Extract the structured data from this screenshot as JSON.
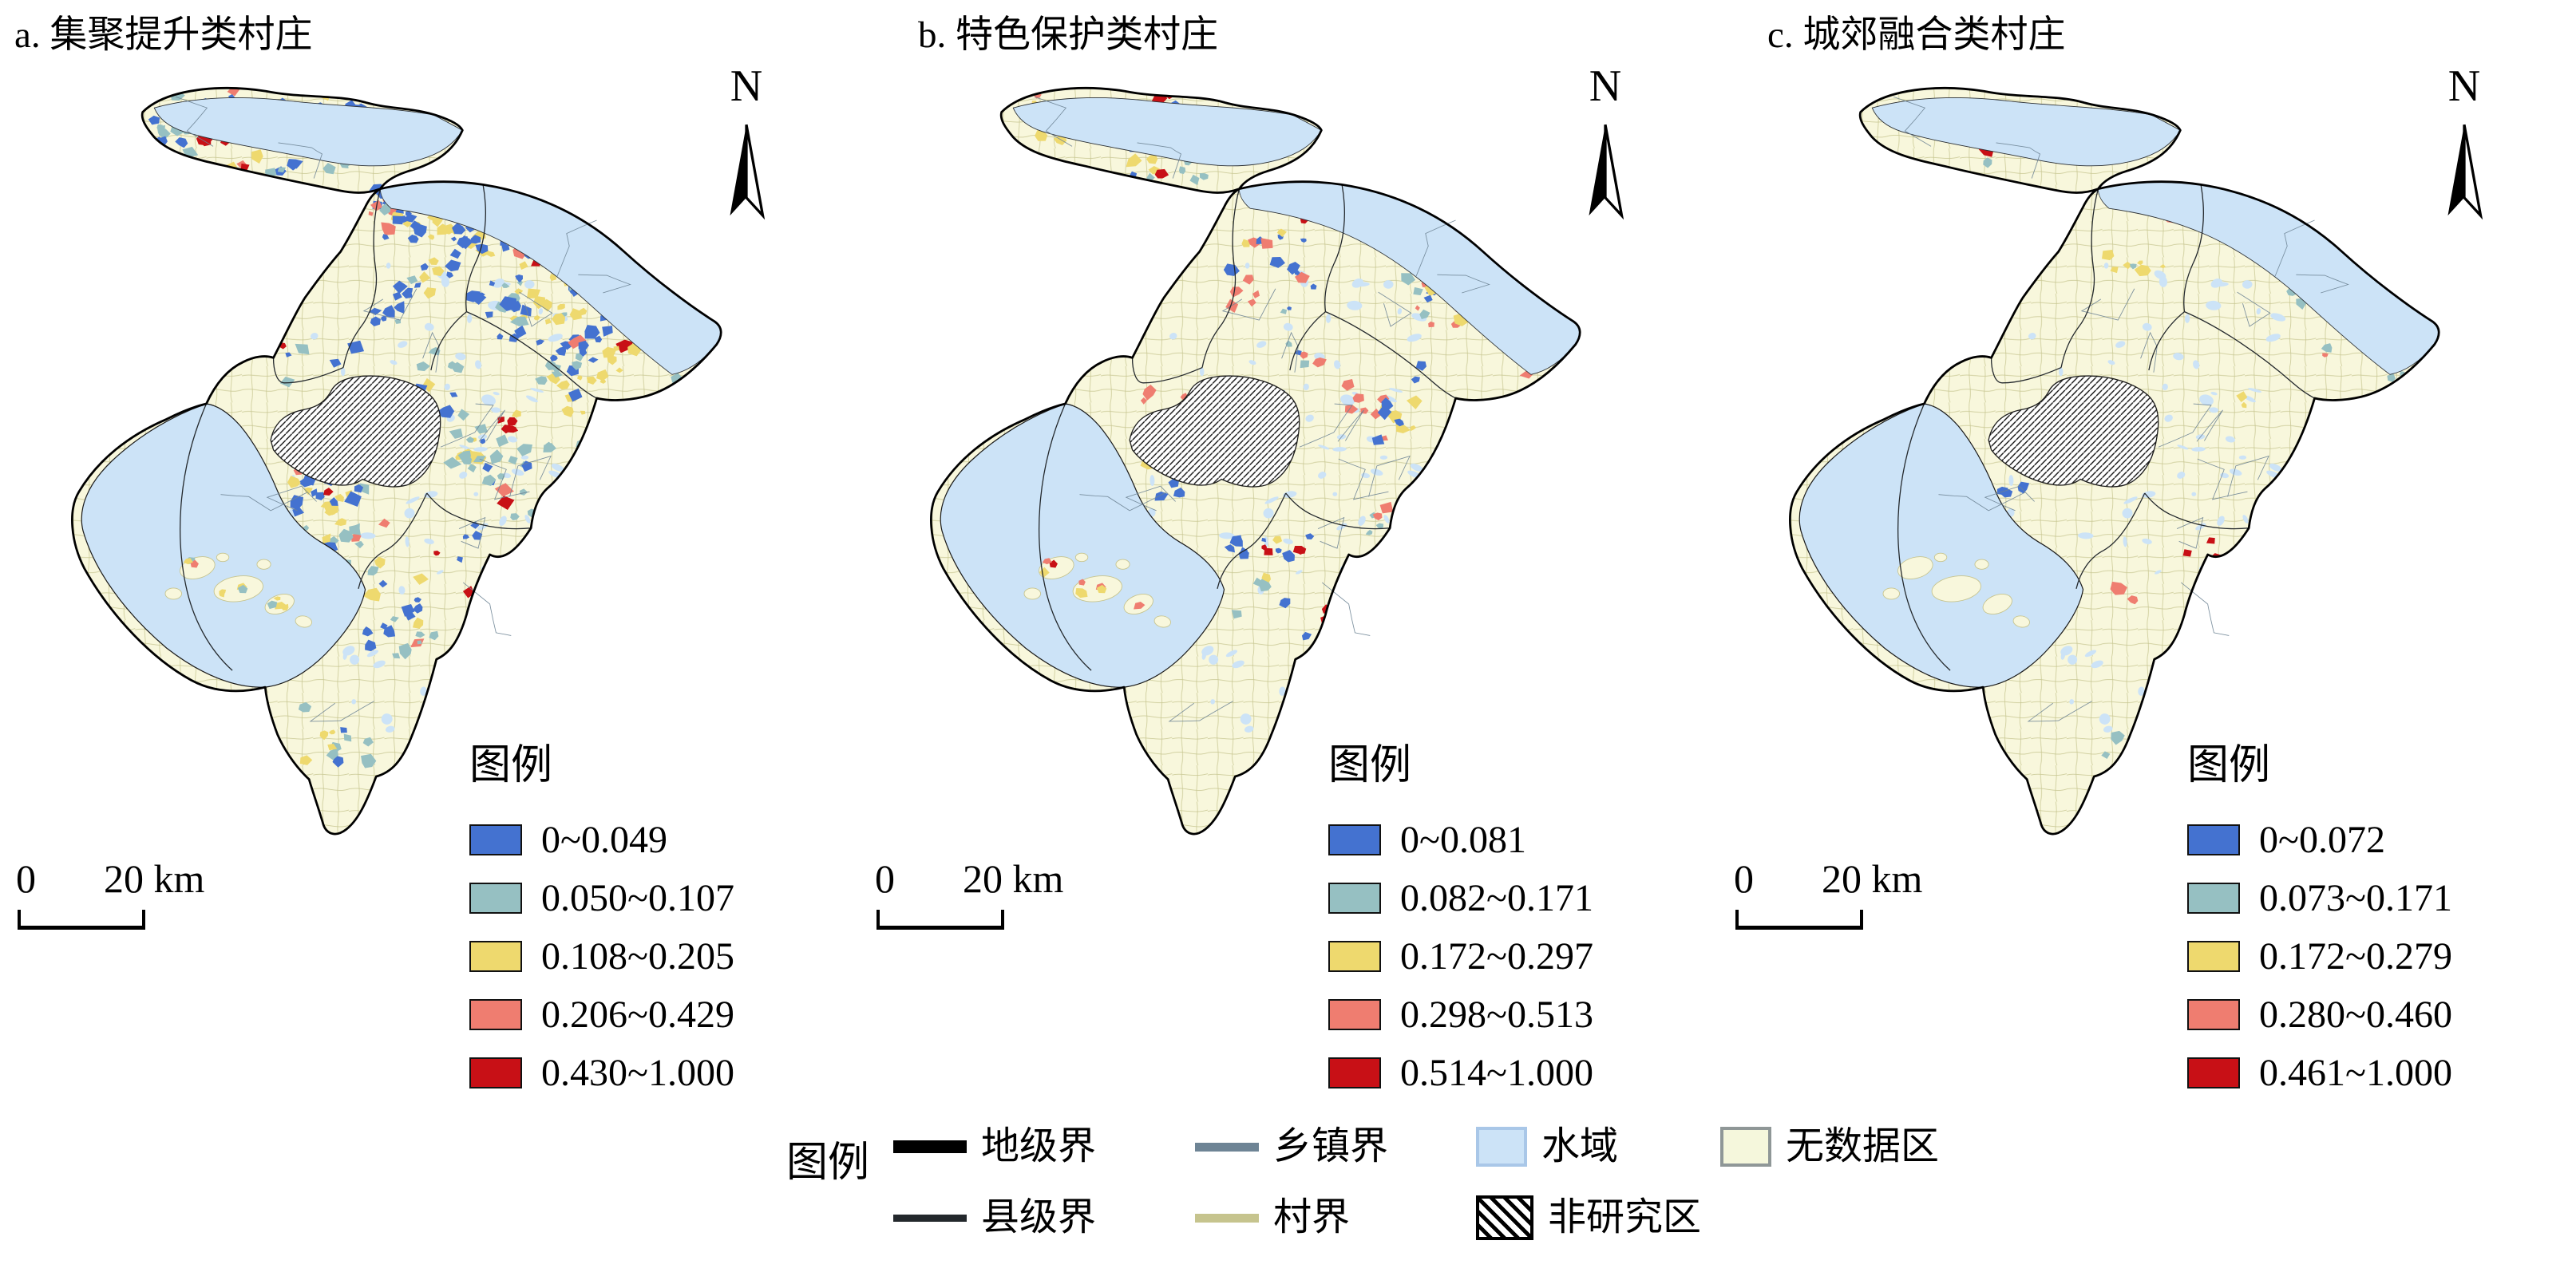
{
  "figure": {
    "panels": [
      {
        "id": "a",
        "title": "a. 集聚提升类村庄",
        "legend_title": "图例",
        "north_label": "N",
        "scale_bar": {
          "start": "0",
          "end": "20 km"
        },
        "classes": [
          {
            "range": "0~0.049",
            "color": "#4472d0"
          },
          {
            "range": "0.050~0.107",
            "color": "#96c0c2"
          },
          {
            "range": "0.108~0.205",
            "color": "#eed96e"
          },
          {
            "range": "0.206~0.429",
            "color": "#ef7d70"
          },
          {
            "range": "0.430~1.000",
            "color": "#c81016"
          }
        ]
      },
      {
        "id": "b",
        "title": "b. 特色保护类村庄",
        "legend_title": "图例",
        "north_label": "N",
        "scale_bar": {
          "start": "0",
          "end": "20 km"
        },
        "classes": [
          {
            "range": "0~0.081",
            "color": "#4472d0"
          },
          {
            "range": "0.082~0.171",
            "color": "#96c0c2"
          },
          {
            "range": "0.172~0.297",
            "color": "#eed96e"
          },
          {
            "range": "0.298~0.513",
            "color": "#ef7d70"
          },
          {
            "range": "0.514~1.000",
            "color": "#c81016"
          }
        ]
      },
      {
        "id": "c",
        "title": "c. 城郊融合类村庄",
        "legend_title": "图例",
        "north_label": "N",
        "scale_bar": {
          "start": "0",
          "end": "20 km"
        },
        "classes": [
          {
            "range": "0~0.072",
            "color": "#4472d0"
          },
          {
            "range": "0.073~0.171",
            "color": "#96c0c2"
          },
          {
            "range": "0.172~0.279",
            "color": "#eed96e"
          },
          {
            "range": "0.280~0.460",
            "color": "#ef7d70"
          },
          {
            "range": "0.461~1.000",
            "color": "#c81016"
          }
        ]
      }
    ],
    "shared_legend": {
      "title": "图例",
      "items": [
        {
          "label": "地级界"
        },
        {
          "label": "县级界"
        },
        {
          "label": "乡镇界"
        },
        {
          "label": "村界"
        },
        {
          "label": "水域"
        },
        {
          "label": "非研究区"
        },
        {
          "label": "无数据区"
        }
      ]
    },
    "map_colors": {
      "water": "#cce3f7",
      "water_border": "#a9c7e8",
      "land": "#f8f7dc",
      "no_data_fill": "#f5f7dc",
      "no_data_border": "#8f9797",
      "city_boundary": "#000000",
      "county_boundary": "#23282c",
      "town_boundary": "#6e8495",
      "village_boundary": "#c6c48e"
    }
  }
}
